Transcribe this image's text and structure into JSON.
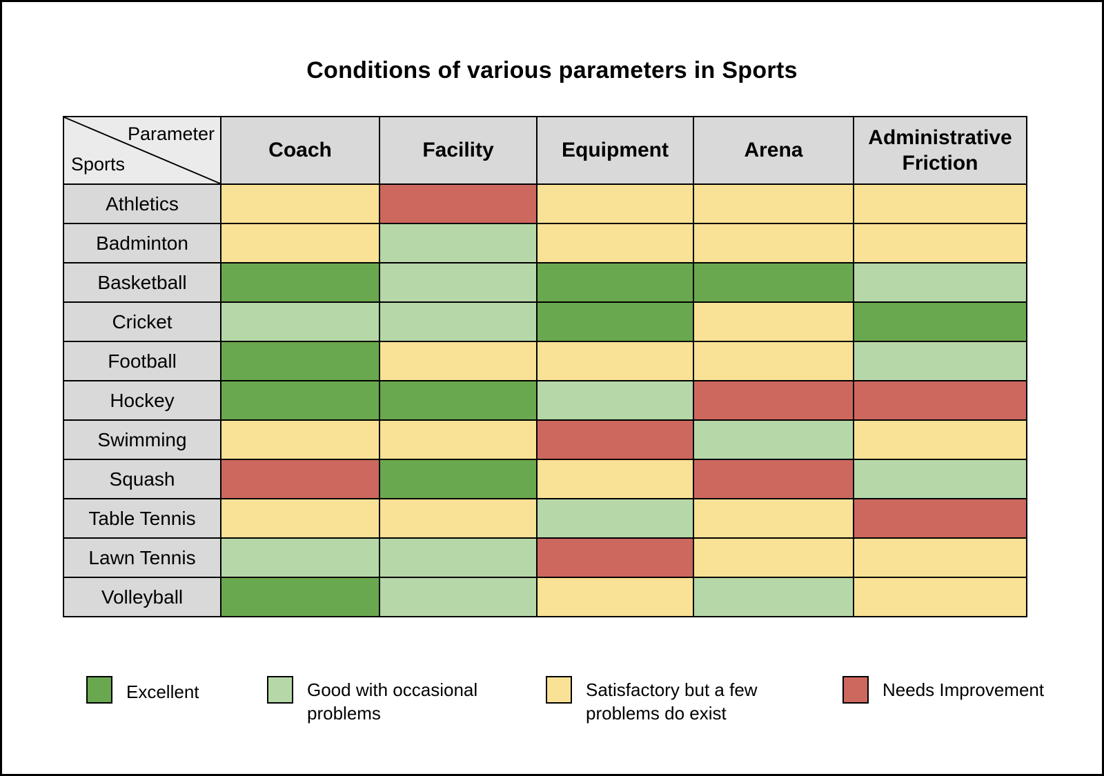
{
  "title": "Conditions of various parameters in Sports",
  "corner": {
    "top": "Parameter",
    "bottom": "Sports"
  },
  "palette": {
    "excellent": "#6AA84F",
    "good": "#B6D7A8",
    "satisfactory": "#F9E195",
    "needs_improvement": "#CD685F"
  },
  "chart_data": {
    "type": "heatmap",
    "title": "Conditions of various parameters in Sports",
    "columns": [
      "Coach",
      "Facility",
      "Equipment",
      "Arena",
      "Administrative Friction"
    ],
    "rows": [
      "Athletics",
      "Badminton",
      "Basketball",
      "Cricket",
      "Football",
      "Hockey",
      "Swimming",
      "Squash",
      "Table Tennis",
      "Lawn Tennis",
      "Volleyball"
    ],
    "values": [
      [
        "satisfactory",
        "needs_improvement",
        "satisfactory",
        "satisfactory",
        "satisfactory"
      ],
      [
        "satisfactory",
        "good",
        "satisfactory",
        "satisfactory",
        "satisfactory"
      ],
      [
        "excellent",
        "good",
        "excellent",
        "excellent",
        "good"
      ],
      [
        "good",
        "good",
        "excellent",
        "satisfactory",
        "excellent"
      ],
      [
        "excellent",
        "satisfactory",
        "satisfactory",
        "satisfactory",
        "good"
      ],
      [
        "excellent",
        "excellent",
        "good",
        "needs_improvement",
        "needs_improvement"
      ],
      [
        "satisfactory",
        "satisfactory",
        "needs_improvement",
        "good",
        "satisfactory"
      ],
      [
        "needs_improvement",
        "excellent",
        "satisfactory",
        "needs_improvement",
        "good"
      ],
      [
        "satisfactory",
        "satisfactory",
        "good",
        "satisfactory",
        "needs_improvement"
      ],
      [
        "good",
        "good",
        "needs_improvement",
        "satisfactory",
        "satisfactory"
      ],
      [
        "excellent",
        "good",
        "satisfactory",
        "good",
        "satisfactory"
      ]
    ],
    "legend": [
      {
        "key": "excellent",
        "label": "Excellent"
      },
      {
        "key": "good",
        "label": "Good with occasional problems"
      },
      {
        "key": "satisfactory",
        "label": "Satisfactory but a few problems do exist"
      },
      {
        "key": "needs_improvement",
        "label": "Needs Improvement"
      }
    ],
    "legend_position": "bottom",
    "grid": true
  }
}
